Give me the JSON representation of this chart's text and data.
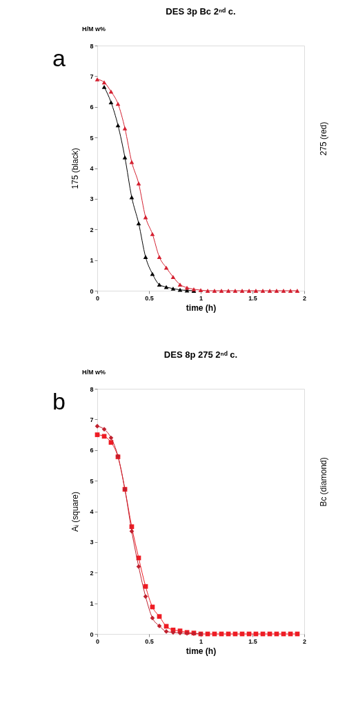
{
  "chart_data": [
    {
      "type": "line",
      "title": "DES 3p Bc 2ⁿᵈ c.",
      "xlabel": "time (h)",
      "ylabel": "175 (black)",
      "y2label": "275 (red)",
      "annotations": [
        "a",
        "H/M w%"
      ],
      "xlim": [
        0,
        2
      ],
      "ylim": [
        0,
        8
      ],
      "xticks": [
        0,
        0.5,
        1,
        1.5,
        2
      ],
      "yticks": [
        0,
        1,
        2,
        3,
        4,
        5,
        6,
        7,
        8
      ],
      "grid": false,
      "line_style": "solid",
      "series": [
        {
          "color": "#000000",
          "marker": "triangle",
          "x": [
            0.067,
            0.133,
            0.2,
            0.267,
            0.333,
            0.4,
            0.467,
            0.533,
            0.6,
            0.667,
            0.733,
            0.8,
            0.867,
            0.933
          ],
          "values": [
            6.65,
            6.15,
            5.4,
            4.35,
            3.05,
            2.2,
            1.1,
            0.55,
            0.2,
            0.12,
            0.07,
            0.03,
            0.01,
            0
          ]
        },
        {
          "color": "#d42030",
          "marker": "triangle",
          "x": [
            0,
            0.067,
            0.133,
            0.2,
            0.267,
            0.333,
            0.4,
            0.467,
            0.533,
            0.6,
            0.667,
            0.733,
            0.8,
            0.867,
            0.933,
            1.0,
            1.067,
            1.133,
            1.2,
            1.267,
            1.333,
            1.4,
            1.467,
            1.533,
            1.6,
            1.667,
            1.733,
            1.8,
            1.867,
            1.933
          ],
          "values": [
            6.9,
            6.8,
            6.5,
            6.1,
            5.3,
            4.2,
            3.5,
            2.4,
            1.85,
            1.1,
            0.75,
            0.45,
            0.2,
            0.1,
            0.05,
            0.02,
            0,
            0,
            0,
            0,
            0,
            0,
            0,
            0,
            0,
            0,
            0,
            0,
            0,
            0
          ]
        }
      ]
    },
    {
      "type": "line",
      "title": "DES 8p 275 2ⁿᵈ c.",
      "xlabel": "time (h)",
      "ylabel": "Aᵢ (square)",
      "y2label": "Bc (diamond)",
      "annotations": [
        "b",
        "H/M w%"
      ],
      "xlim": [
        0,
        2
      ],
      "ylim": [
        0,
        8
      ],
      "xticks": [
        0,
        0.5,
        1,
        1.5,
        2
      ],
      "yticks": [
        0,
        1,
        2,
        3,
        4,
        5,
        6,
        7,
        8
      ],
      "grid": false,
      "line_style": "solid",
      "series": [
        {
          "color": "#ee1c24",
          "marker": "square",
          "x": [
            0,
            0.067,
            0.133,
            0.2,
            0.267,
            0.333,
            0.4,
            0.467,
            0.533,
            0.6,
            0.667,
            0.733,
            0.8,
            0.867,
            0.933,
            1.0,
            1.067,
            1.133,
            1.2,
            1.267,
            1.333,
            1.4,
            1.467,
            1.533,
            1.6,
            1.667,
            1.733,
            1.8,
            1.867,
            1.933
          ],
          "values": [
            6.5,
            6.45,
            6.25,
            5.78,
            4.72,
            3.5,
            2.48,
            1.55,
            0.88,
            0.57,
            0.25,
            0.13,
            0.1,
            0.05,
            0.03,
            0,
            0,
            0,
            0,
            0,
            0,
            0,
            0,
            0,
            0,
            0,
            0,
            0,
            0,
            0
          ]
        },
        {
          "color": "#c0202e",
          "marker": "diamond",
          "x": [
            0,
            0.067,
            0.133,
            0.2,
            0.267,
            0.333,
            0.4,
            0.467,
            0.533,
            0.6,
            0.667,
            0.733,
            0.8,
            0.867,
            0.933,
            1.0
          ],
          "values": [
            6.78,
            6.68,
            6.4,
            5.8,
            4.72,
            3.35,
            2.2,
            1.22,
            0.52,
            0.26,
            0.08,
            0.05,
            0.03,
            0.02,
            0.01,
            0
          ]
        }
      ]
    }
  ]
}
